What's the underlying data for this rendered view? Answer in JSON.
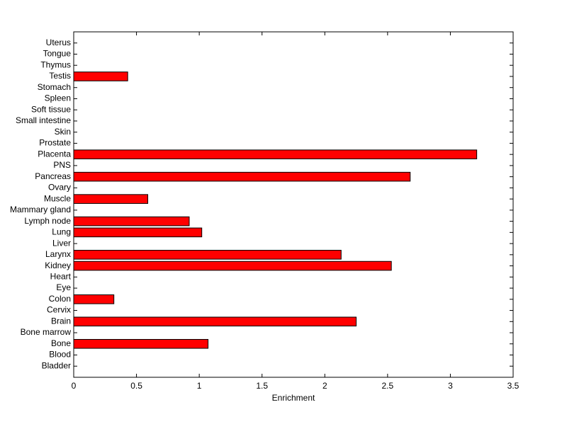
{
  "chart_data": {
    "type": "barh",
    "x_label": "Enrichment",
    "categories": [
      "Bladder",
      "Blood",
      "Bone",
      "Bone marrow",
      "Brain",
      "Cervix",
      "Colon",
      "Eye",
      "Heart",
      "Kidney",
      "Larynx",
      "Liver",
      "Lung",
      "Lymph node",
      "Mammary gland",
      "Muscle",
      "Ovary",
      "Pancreas",
      "PNS",
      "Placenta",
      "Prostate",
      "Skin",
      "Small intestine",
      "Soft tissue",
      "Spleen",
      "Stomach",
      "Testis",
      "Thymus",
      "Tongue",
      "Uterus"
    ],
    "values": [
      0,
      0,
      1.07,
      0,
      2.25,
      0,
      0.32,
      0,
      0,
      2.53,
      2.13,
      0,
      1.02,
      0.92,
      0,
      0.59,
      0,
      2.68,
      0,
      3.21,
      0,
      0,
      0,
      0,
      0,
      0,
      0.43,
      0,
      0,
      0
    ],
    "color": "#ff0000",
    "xlim": [
      0,
      3.5
    ],
    "xticks": [
      0,
      0.5,
      1,
      1.5,
      2,
      2.5,
      3,
      3.5
    ]
  }
}
